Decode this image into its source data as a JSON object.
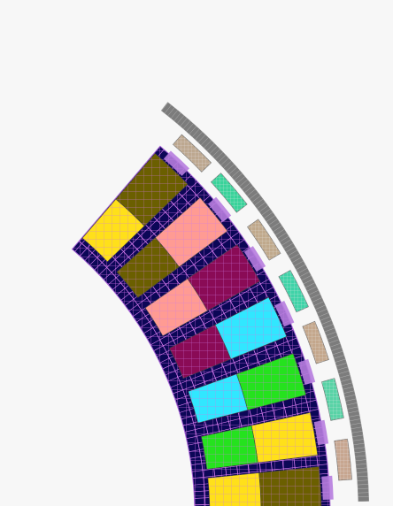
{
  "figure": {
    "background": "#f7f7f7",
    "mesh_line_color": "#d97cf0",
    "yoke_color": "#0c0757",
    "magnet_colors": [
      "#8fe0c8",
      "#a9e06a"
    ],
    "magnet_fill_colors": [
      "#bda890",
      "#39d39a",
      "#c0a98c",
      "#3fd3a8",
      "#c4a78c",
      "#58d3a6",
      "#c7a690"
    ],
    "back_iron_color": "#7c7c7c",
    "slot_coil_pairs": [
      [
        "#ffe01a",
        "#6b5f00"
      ],
      [
        "#6b5f00",
        "#ff9b93"
      ],
      [
        "#ff9b93",
        "#8a0b56"
      ],
      [
        "#8a0b56",
        "#31e7ff"
      ],
      [
        "#31e7ff",
        "#25e21e"
      ],
      [
        "#25e21e",
        "#ffe01a"
      ]
    ]
  }
}
